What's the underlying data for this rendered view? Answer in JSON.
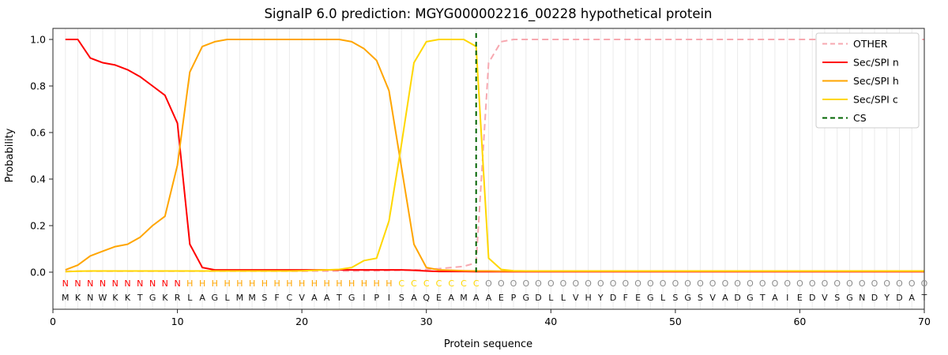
{
  "title": "SignalP 6.0 prediction: MGYG000002216_00228 hypothetical protein",
  "chart_data": {
    "type": "line",
    "title": "SignalP 6.0 prediction: MGYG000002216_00228 hypothetical protein",
    "xlabel": "Protein sequence",
    "ylabel": "Probability",
    "xlim": [
      0,
      70
    ],
    "ylim": [
      0,
      1.05
    ],
    "xticks": [
      0,
      10,
      20,
      30,
      40,
      50,
      60,
      70
    ],
    "yticks": [
      0,
      0.2,
      0.4,
      0.6,
      0.8,
      1.0
    ],
    "grid": "vertical line at every residue position",
    "legend_position": "upper right",
    "sequence": "MKNWKKTGKRLAGLMMSFCVAATGIPISAQEAMAAEPGDLLVHYDFEGLSGSVADGTAIEDVSGNDYDAT",
    "region_labels": "NNNNNNNNNNHHHHHHHHHHHHHHHHHCCCCCCCOOOOOOOOOOOOOOOOOOOOOOOOOOOOOOOOOOOO",
    "cs_position": 34,
    "colors": {
      "other": "#f7a8b0",
      "n": "#ff0000",
      "h": "#ffa500",
      "c": "#ffd700",
      "cs": "#006400",
      "o_letter": "#8c8c8c",
      "grid": "#ebebeb",
      "axis": "#262626"
    },
    "series": [
      {
        "name": "OTHER",
        "color": "#f7a8b0",
        "style": "dashed",
        "values": [
          0.004,
          0.004,
          0.004,
          0.004,
          0.004,
          0.004,
          0.004,
          0.004,
          0.004,
          0.004,
          0.004,
          0.004,
          0.004,
          0.004,
          0.004,
          0.004,
          0.004,
          0.004,
          0.004,
          0.004,
          0.005,
          0.005,
          0.005,
          0.005,
          0.006,
          0.006,
          0.007,
          0.008,
          0.01,
          0.012,
          0.015,
          0.02,
          0.025,
          0.04,
          0.9,
          0.99,
          1.0,
          1.0,
          1.0,
          1.0,
          1.0,
          1.0,
          1.0,
          1.0,
          1.0,
          1.0,
          1.0,
          1.0,
          1.0,
          1.0,
          1.0,
          1.0,
          1.0,
          1.0,
          1.0,
          1.0,
          1.0,
          1.0,
          1.0,
          1.0,
          1.0,
          1.0,
          1.0,
          1.0,
          1.0,
          1.0,
          1.0,
          1.0,
          1.0,
          1.0
        ]
      },
      {
        "name": "Sec/SPI n",
        "color": "#ff0000",
        "style": "solid",
        "values": [
          1.0,
          1.0,
          0.92,
          0.9,
          0.89,
          0.87,
          0.84,
          0.8,
          0.76,
          0.64,
          0.12,
          0.02,
          0.01,
          0.01,
          0.01,
          0.01,
          0.01,
          0.01,
          0.01,
          0.01,
          0.01,
          0.01,
          0.01,
          0.01,
          0.01,
          0.01,
          0.01,
          0.01,
          0.008,
          0.005,
          0.003,
          0.003,
          0.003,
          0.002,
          0.002,
          0.002,
          0.002,
          0.002,
          0.002,
          0.002,
          0.002,
          0.002,
          0.002,
          0.002,
          0.002,
          0.002,
          0.002,
          0.002,
          0.002,
          0.002,
          0.002,
          0.002,
          0.002,
          0.002,
          0.002,
          0.002,
          0.002,
          0.002,
          0.002,
          0.002,
          0.002,
          0.002,
          0.002,
          0.002,
          0.002,
          0.002,
          0.002,
          0.002,
          0.002,
          0.002
        ]
      },
      {
        "name": "Sec/SPI h",
        "color": "#ffa500",
        "style": "solid",
        "values": [
          0.01,
          0.03,
          0.07,
          0.09,
          0.11,
          0.12,
          0.15,
          0.2,
          0.24,
          0.46,
          0.86,
          0.97,
          0.99,
          1.0,
          1.0,
          1.0,
          1.0,
          1.0,
          1.0,
          1.0,
          1.0,
          1.0,
          1.0,
          0.99,
          0.96,
          0.91,
          0.78,
          0.45,
          0.12,
          0.02,
          0.01,
          0.008,
          0.006,
          0.005,
          0.005,
          0.004,
          0.004,
          0.004,
          0.004,
          0.004,
          0.004,
          0.004,
          0.004,
          0.004,
          0.004,
          0.004,
          0.004,
          0.004,
          0.004,
          0.004,
          0.004,
          0.004,
          0.004,
          0.004,
          0.004,
          0.004,
          0.004,
          0.004,
          0.004,
          0.004,
          0.004,
          0.004,
          0.004,
          0.004,
          0.004,
          0.004,
          0.004,
          0.004,
          0.004,
          0.004
        ]
      },
      {
        "name": "Sec/SPI c",
        "color": "#ffd700",
        "style": "solid",
        "values": [
          0.002,
          0.004,
          0.005,
          0.005,
          0.005,
          0.005,
          0.005,
          0.005,
          0.005,
          0.005,
          0.005,
          0.005,
          0.005,
          0.005,
          0.005,
          0.005,
          0.005,
          0.005,
          0.005,
          0.006,
          0.008,
          0.01,
          0.012,
          0.02,
          0.05,
          0.06,
          0.22,
          0.55,
          0.9,
          0.99,
          1.0,
          1.0,
          1.0,
          0.97,
          0.06,
          0.012,
          0.006,
          0.005,
          0.005,
          0.005,
          0.005,
          0.005,
          0.005,
          0.005,
          0.005,
          0.005,
          0.005,
          0.005,
          0.005,
          0.005,
          0.005,
          0.005,
          0.005,
          0.005,
          0.005,
          0.005,
          0.005,
          0.005,
          0.005,
          0.005,
          0.005,
          0.005,
          0.005,
          0.005,
          0.005,
          0.005,
          0.005,
          0.005,
          0.005,
          0.005
        ]
      },
      {
        "name": "CS",
        "color": "#006400",
        "style": "dashed-vertical",
        "x": 34
      }
    ]
  }
}
